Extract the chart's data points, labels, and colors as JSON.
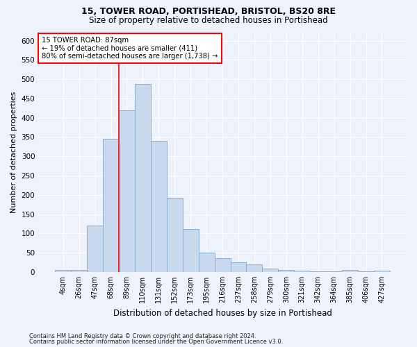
{
  "title1": "15, TOWER ROAD, PORTISHEAD, BRISTOL, BS20 8RE",
  "title2": "Size of property relative to detached houses in Portishead",
  "xlabel": "Distribution of detached houses by size in Portishead",
  "ylabel": "Number of detached properties",
  "bar_labels": [
    "4sqm",
    "26sqm",
    "47sqm",
    "68sqm",
    "89sqm",
    "110sqm",
    "131sqm",
    "152sqm",
    "173sqm",
    "195sqm",
    "216sqm",
    "237sqm",
    "258sqm",
    "279sqm",
    "300sqm",
    "321sqm",
    "342sqm",
    "364sqm",
    "385sqm",
    "406sqm",
    "427sqm"
  ],
  "bar_values": [
    5,
    6,
    120,
    345,
    420,
    487,
    340,
    193,
    112,
    50,
    35,
    25,
    19,
    8,
    5,
    3,
    2,
    1,
    5,
    2,
    3
  ],
  "bar_color": "#c8d9ee",
  "bar_edge_color": "#8aafd4",
  "annotation_line1": "15 TOWER ROAD: 87sqm",
  "annotation_line2": "← 19% of detached houses are smaller (411)",
  "annotation_line3": "80% of semi-detached houses are larger (1,738) →",
  "annotation_box_color": "white",
  "annotation_box_edge": "red",
  "vline_color": "red",
  "vline_x_index": 4,
  "ylim": [
    0,
    620
  ],
  "yticks": [
    0,
    50,
    100,
    150,
    200,
    250,
    300,
    350,
    400,
    450,
    500,
    550,
    600
  ],
  "footnote1": "Contains HM Land Registry data © Crown copyright and database right 2024.",
  "footnote2": "Contains public sector information licensed under the Open Government Licence v3.0.",
  "background_color": "#eef2fa",
  "grid_color": "white"
}
